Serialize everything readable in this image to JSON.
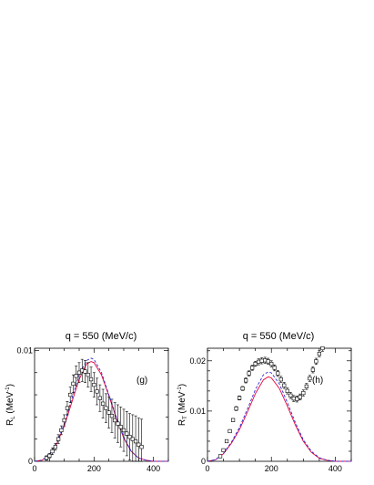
{
  "chart_data": [
    {
      "type": "scatter",
      "title": "q = 550 (MeV/c)",
      "panel_label": "(g)",
      "ylabel": {
        "base": "R",
        "sub": "L",
        "unit_open": " (MeV",
        "unit_sup": "-1",
        "unit_close": ")"
      },
      "xlabel": "",
      "xlim": [
        0,
        450
      ],
      "ylim": [
        0,
        0.0102
      ],
      "x_ticks": [
        {
          "v": 0,
          "label": "0"
        },
        {
          "v": 200,
          "label": "200"
        },
        {
          "v": 400,
          "label": "400"
        }
      ],
      "y_ticks": [
        {
          "v": 0,
          "label": "0"
        },
        {
          "v": 0.01,
          "label": "0.01"
        }
      ],
      "grid": false,
      "series": [
        {
          "style": "markers-with-errorbars",
          "x": [
            40,
            50,
            60,
            70,
            80,
            90,
            100,
            110,
            120,
            130,
            140,
            150,
            160,
            170,
            180,
            190,
            200,
            210,
            220,
            230,
            240,
            250,
            260,
            270,
            280,
            290,
            300,
            310,
            320,
            330,
            340,
            350,
            360
          ],
          "y": [
            0.0003,
            0.0005,
            0.0009,
            0.0013,
            0.002,
            0.0028,
            0.0037,
            0.0048,
            0.006,
            0.007,
            0.0077,
            0.008,
            0.0082,
            0.0081,
            0.0078,
            0.0074,
            0.0069,
            0.0063,
            0.0057,
            0.0052,
            0.0048,
            0.0044,
            0.0041,
            0.0037,
            0.0034,
            0.0031,
            0.0028,
            0.0025,
            0.0022,
            0.002,
            0.0018,
            0.0015,
            0.0013
          ],
          "err": [
            0.0002,
            0.0002,
            0.0003,
            0.0003,
            0.0004,
            0.0004,
            0.0005,
            0.0006,
            0.0007,
            0.0008,
            0.0009,
            0.0009,
            0.001,
            0.001,
            0.0011,
            0.0011,
            0.0011,
            0.0012,
            0.0012,
            0.0013,
            0.0013,
            0.0014,
            0.0015,
            0.0016,
            0.0017,
            0.0018,
            0.0019,
            0.002,
            0.0021,
            0.0022,
            0.0023,
            0.0024,
            0.0025
          ]
        },
        {
          "style": "solid",
          "color": "#e8003c",
          "x": [
            0,
            25,
            50,
            75,
            100,
            125,
            150,
            175,
            190,
            200,
            225,
            250,
            275,
            300,
            325,
            350,
            375,
            400,
            425,
            450
          ],
          "y": [
            0,
            0.0001,
            0.0006,
            0.0016,
            0.0032,
            0.0053,
            0.0074,
            0.0088,
            0.009,
            0.0089,
            0.0078,
            0.0059,
            0.0039,
            0.0021,
            0.0009,
            0.0003,
            0.0001,
            0,
            0,
            0
          ]
        },
        {
          "style": "dashed",
          "color": "#2d2dcc",
          "x": [
            0,
            25,
            50,
            75,
            100,
            125,
            150,
            175,
            190,
            200,
            225,
            250,
            275,
            300,
            325,
            350,
            375,
            400,
            425,
            450
          ],
          "y": [
            0,
            0.0001,
            0.0006,
            0.0017,
            0.0034,
            0.0056,
            0.0078,
            0.0091,
            0.0093,
            0.0092,
            0.008,
            0.006,
            0.004,
            0.0022,
            0.0009,
            0.0003,
            0.0001,
            0,
            0,
            0
          ]
        }
      ]
    },
    {
      "type": "scatter",
      "title": "q = 550 (MeV/c)",
      "panel_label": "(h)",
      "ylabel": {
        "base": "R",
        "sub": "T",
        "unit_open": " (MeV",
        "unit_sup": "-1",
        "unit_close": ")"
      },
      "xlabel": "",
      "xlim": [
        0,
        450
      ],
      "ylim": [
        0,
        0.0225
      ],
      "x_ticks": [
        {
          "v": 0,
          "label": "0"
        },
        {
          "v": 200,
          "label": "200"
        },
        {
          "v": 400,
          "label": "400"
        }
      ],
      "y_ticks": [
        {
          "v": 0,
          "label": "0"
        },
        {
          "v": 0.01,
          "label": "0.01"
        },
        {
          "v": 0.02,
          "label": "0.02"
        }
      ],
      "grid": false,
      "series": [
        {
          "style": "markers-with-errorbars",
          "x": [
            40,
            50,
            60,
            70,
            80,
            90,
            100,
            110,
            120,
            130,
            140,
            150,
            160,
            170,
            180,
            190,
            200,
            210,
            220,
            230,
            240,
            250,
            260,
            270,
            280,
            290,
            300,
            310,
            320,
            330,
            340,
            350,
            360
          ],
          "y": [
            0.001,
            0.0022,
            0.004,
            0.006,
            0.0082,
            0.0105,
            0.0126,
            0.0145,
            0.0161,
            0.0175,
            0.0186,
            0.0194,
            0.0198,
            0.02,
            0.0201,
            0.0199,
            0.0194,
            0.0186,
            0.0175,
            0.0163,
            0.0151,
            0.014,
            0.0131,
            0.0125,
            0.0124,
            0.0128,
            0.0136,
            0.0149,
            0.0165,
            0.0182,
            0.0199,
            0.0214,
            0.0225
          ],
          "err": [
            0.0002,
            0.0002,
            0.0003,
            0.0003,
            0.0003,
            0.0004,
            0.0004,
            0.0004,
            0.0005,
            0.0005,
            0.0005,
            0.0005,
            0.0006,
            0.0006,
            0.0006,
            0.0006,
            0.0006,
            0.0006,
            0.0006,
            0.0006,
            0.0006,
            0.0006,
            0.0006,
            0.0006,
            0.0006,
            0.0006,
            0.0006,
            0.0006,
            0.0006,
            0.0006,
            0.0006,
            0.0006,
            0.0006
          ]
        },
        {
          "style": "solid",
          "color": "#e8003c",
          "x": [
            0,
            25,
            50,
            75,
            100,
            125,
            150,
            175,
            190,
            200,
            225,
            250,
            275,
            300,
            325,
            350,
            375,
            400,
            425,
            450
          ],
          "y": [
            0,
            0.0003,
            0.0015,
            0.0036,
            0.0063,
            0.0098,
            0.0135,
            0.0162,
            0.0168,
            0.0166,
            0.0145,
            0.011,
            0.0072,
            0.004,
            0.0018,
            0.0006,
            0.0002,
            0,
            0,
            0
          ]
        },
        {
          "style": "dashed",
          "color": "#2d2dcc",
          "x": [
            0,
            25,
            50,
            75,
            100,
            125,
            150,
            175,
            190,
            200,
            225,
            250,
            275,
            300,
            325,
            350,
            375,
            400,
            425,
            450
          ],
          "y": [
            0,
            0.0003,
            0.0016,
            0.0038,
            0.0067,
            0.0104,
            0.0143,
            0.0172,
            0.0178,
            0.0176,
            0.0154,
            0.0117,
            0.0077,
            0.0043,
            0.002,
            0.0007,
            0.0002,
            0,
            0,
            0
          ]
        }
      ]
    }
  ]
}
